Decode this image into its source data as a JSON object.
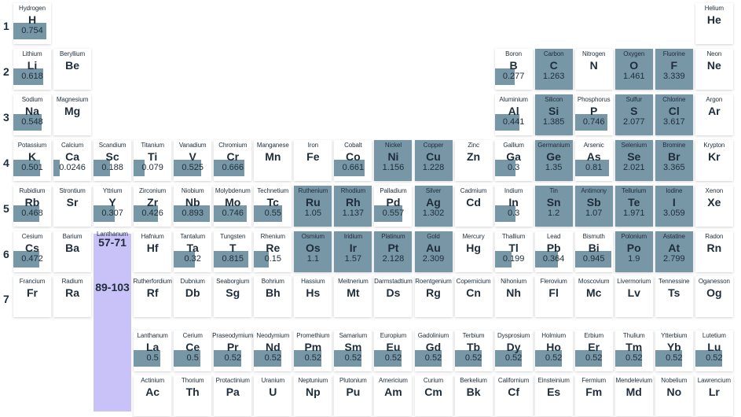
{
  "chart_data": {
    "type": "table",
    "colors": {
      "bar": "#7796a6",
      "series_block": "#c9c2f8",
      "text": "#1f2d3a"
    },
    "periods": [
      "1",
      "2",
      "3",
      "4",
      "5",
      "6",
      "7"
    ],
    "series_blocks": [
      {
        "label": "Lanthanum",
        "range": "57-71"
      },
      {
        "label": "",
        "range": "89-103"
      }
    ],
    "elements": [
      {
        "name": "Hydrogen",
        "symbol": "H",
        "row": 1,
        "col": 1,
        "value": "0.754",
        "v": 0.754
      },
      {
        "name": "Helium",
        "symbol": "He",
        "row": 1,
        "col": 18,
        "value": "",
        "v": 0
      },
      {
        "name": "Lithium",
        "symbol": "Li",
        "row": 2,
        "col": 1,
        "value": "0.618",
        "v": 0.618
      },
      {
        "name": "Beryllium",
        "symbol": "Be",
        "row": 2,
        "col": 2,
        "value": "",
        "v": 0
      },
      {
        "name": "Boron",
        "symbol": "B",
        "row": 2,
        "col": 13,
        "value": "0.277",
        "v": 0.277
      },
      {
        "name": "Carbon",
        "symbol": "C",
        "row": 2,
        "col": 14,
        "value": "1.263",
        "v": 1.263
      },
      {
        "name": "Nitrogen",
        "symbol": "N",
        "row": 2,
        "col": 15,
        "value": "",
        "v": 0
      },
      {
        "name": "Oxygen",
        "symbol": "O",
        "row": 2,
        "col": 16,
        "value": "1.461",
        "v": 1.461
      },
      {
        "name": "Fluorine",
        "symbol": "F",
        "row": 2,
        "col": 17,
        "value": "3.339",
        "v": 3.339
      },
      {
        "name": "Neon",
        "symbol": "Ne",
        "row": 2,
        "col": 18,
        "value": "",
        "v": 0
      },
      {
        "name": "Sodium",
        "symbol": "Na",
        "row": 3,
        "col": 1,
        "value": "0.548",
        "v": 0.548
      },
      {
        "name": "Magnesium",
        "symbol": "Mg",
        "row": 3,
        "col": 2,
        "value": "",
        "v": 0
      },
      {
        "name": "Aluminium",
        "symbol": "Al",
        "row": 3,
        "col": 13,
        "value": "0.441",
        "v": 0.441
      },
      {
        "name": "Silicon",
        "symbol": "Si",
        "row": 3,
        "col": 14,
        "value": "1.385",
        "v": 1.385
      },
      {
        "name": "Phosphorus",
        "symbol": "P",
        "row": 3,
        "col": 15,
        "value": "0.746",
        "v": 0.746
      },
      {
        "name": "Sulfur",
        "symbol": "S",
        "row": 3,
        "col": 16,
        "value": "2.077",
        "v": 2.077
      },
      {
        "name": "Chlorine",
        "symbol": "Cl",
        "row": 3,
        "col": 17,
        "value": "3.617",
        "v": 3.617
      },
      {
        "name": "Argon",
        "symbol": "Ar",
        "row": 3,
        "col": 18,
        "value": "",
        "v": 0
      },
      {
        "name": "Potassium",
        "symbol": "K",
        "row": 4,
        "col": 1,
        "value": "0.501",
        "v": 0.501
      },
      {
        "name": "Calcium",
        "symbol": "Ca",
        "row": 4,
        "col": 2,
        "value": "0.0246",
        "v": 0.0246
      },
      {
        "name": "Scandium",
        "symbol": "Sc",
        "row": 4,
        "col": 3,
        "value": "0.188",
        "v": 0.188
      },
      {
        "name": "Titanium",
        "symbol": "Ti",
        "row": 4,
        "col": 4,
        "value": "0.079",
        "v": 0.079
      },
      {
        "name": "Vanadium",
        "symbol": "V",
        "row": 4,
        "col": 5,
        "value": "0.525",
        "v": 0.525
      },
      {
        "name": "Chromium",
        "symbol": "Cr",
        "row": 4,
        "col": 6,
        "value": "0.666",
        "v": 0.666
      },
      {
        "name": "Manganese",
        "symbol": "Mn",
        "row": 4,
        "col": 7,
        "value": "",
        "v": 0
      },
      {
        "name": "Iron",
        "symbol": "Fe",
        "row": 4,
        "col": 8,
        "value": "",
        "v": 0
      },
      {
        "name": "Cobalt",
        "symbol": "Co",
        "row": 4,
        "col": 9,
        "value": "0.661",
        "v": 0.661
      },
      {
        "name": "Nickel",
        "symbol": "Ni",
        "row": 4,
        "col": 10,
        "value": "1.156",
        "v": 1.156
      },
      {
        "name": "Copper",
        "symbol": "Cu",
        "row": 4,
        "col": 11,
        "value": "1.228",
        "v": 1.228
      },
      {
        "name": "Zinc",
        "symbol": "Zn",
        "row": 4,
        "col": 12,
        "value": "",
        "v": 0
      },
      {
        "name": "Gallium",
        "symbol": "Ga",
        "row": 4,
        "col": 13,
        "value": "0.3",
        "v": 0.3
      },
      {
        "name": "Germanium",
        "symbol": "Ge",
        "row": 4,
        "col": 14,
        "value": "1.35",
        "v": 1.35
      },
      {
        "name": "Arsenic",
        "symbol": "As",
        "row": 4,
        "col": 15,
        "value": "0.81",
        "v": 0.81
      },
      {
        "name": "Selenium",
        "symbol": "Se",
        "row": 4,
        "col": 16,
        "value": "2.021",
        "v": 2.021
      },
      {
        "name": "Bromine",
        "symbol": "Br",
        "row": 4,
        "col": 17,
        "value": "3.365",
        "v": 3.365
      },
      {
        "name": "Krypton",
        "symbol": "Kr",
        "row": 4,
        "col": 18,
        "value": "",
        "v": 0
      },
      {
        "name": "Rubidium",
        "symbol": "Rb",
        "row": 5,
        "col": 1,
        "value": "0.468",
        "v": 0.468
      },
      {
        "name": "Strontium",
        "symbol": "Sr",
        "row": 5,
        "col": 2,
        "value": "",
        "v": 0
      },
      {
        "name": "Yttrium",
        "symbol": "Y",
        "row": 5,
        "col": 3,
        "value": "0.307",
        "v": 0.307
      },
      {
        "name": "Zirconium",
        "symbol": "Zr",
        "row": 5,
        "col": 4,
        "value": "0.426",
        "v": 0.426
      },
      {
        "name": "Niobium",
        "symbol": "Nb",
        "row": 5,
        "col": 5,
        "value": "0.893",
        "v": 0.893
      },
      {
        "name": "Molybdenum",
        "symbol": "Mo",
        "row": 5,
        "col": 6,
        "value": "0.746",
        "v": 0.746
      },
      {
        "name": "Technetium",
        "symbol": "Tc",
        "row": 5,
        "col": 7,
        "value": "0.55",
        "v": 0.55
      },
      {
        "name": "Ruthenium",
        "symbol": "Ru",
        "row": 5,
        "col": 8,
        "value": "1.05",
        "v": 1.05
      },
      {
        "name": "Rhodium",
        "symbol": "Rh",
        "row": 5,
        "col": 9,
        "value": "1.137",
        "v": 1.137
      },
      {
        "name": "Palladium",
        "symbol": "Pd",
        "row": 5,
        "col": 10,
        "value": "0.557",
        "v": 0.557
      },
      {
        "name": "Silver",
        "symbol": "Ag",
        "row": 5,
        "col": 11,
        "value": "1.302",
        "v": 1.302
      },
      {
        "name": "Cadmium",
        "symbol": "Cd",
        "row": 5,
        "col": 12,
        "value": "",
        "v": 0
      },
      {
        "name": "Indium",
        "symbol": "In",
        "row": 5,
        "col": 13,
        "value": "0.3",
        "v": 0.3
      },
      {
        "name": "Tin",
        "symbol": "Sn",
        "row": 5,
        "col": 14,
        "value": "1.2",
        "v": 1.2
      },
      {
        "name": "Antimony",
        "symbol": "Sb",
        "row": 5,
        "col": 15,
        "value": "1.07",
        "v": 1.07
      },
      {
        "name": "Tellurium",
        "symbol": "Te",
        "row": 5,
        "col": 16,
        "value": "1.971",
        "v": 1.971
      },
      {
        "name": "Iodine",
        "symbol": "I",
        "row": 5,
        "col": 17,
        "value": "3.059",
        "v": 3.059
      },
      {
        "name": "Xenon",
        "symbol": "Xe",
        "row": 5,
        "col": 18,
        "value": "",
        "v": 0
      },
      {
        "name": "Cesium",
        "symbol": "Cs",
        "row": 6,
        "col": 1,
        "value": "0.472",
        "v": 0.472
      },
      {
        "name": "Barium",
        "symbol": "Ba",
        "row": 6,
        "col": 2,
        "value": "",
        "v": 0
      },
      {
        "name": "Hafnium",
        "symbol": "Hf",
        "row": 6,
        "col": 4,
        "value": "",
        "v": 0
      },
      {
        "name": "Tantalum",
        "symbol": "Ta",
        "row": 6,
        "col": 5,
        "value": "0.32",
        "v": 0.32
      },
      {
        "name": "Tungsten",
        "symbol": "T",
        "row": 6,
        "col": 6,
        "value": "0.815",
        "v": 0.815
      },
      {
        "name": "Rhenium",
        "symbol": "Re",
        "row": 6,
        "col": 7,
        "value": "0.15",
        "v": 0.15
      },
      {
        "name": "Osmium",
        "symbol": "Os",
        "row": 6,
        "col": 8,
        "value": "1.1",
        "v": 1.1
      },
      {
        "name": "Iridium",
        "symbol": "Ir",
        "row": 6,
        "col": 9,
        "value": "1.57",
        "v": 1.57
      },
      {
        "name": "Platinum",
        "symbol": "Pt",
        "row": 6,
        "col": 10,
        "value": "2.128",
        "v": 2.128
      },
      {
        "name": "Gold",
        "symbol": "Au",
        "row": 6,
        "col": 11,
        "value": "2.309",
        "v": 2.309
      },
      {
        "name": "Mercury",
        "symbol": "Hg",
        "row": 6,
        "col": 12,
        "value": "",
        "v": 0
      },
      {
        "name": "Thallium",
        "symbol": "Tl",
        "row": 6,
        "col": 13,
        "value": "0.199",
        "v": 0.199
      },
      {
        "name": "Lead",
        "symbol": "Pb",
        "row": 6,
        "col": 14,
        "value": "0.364",
        "v": 0.364
      },
      {
        "name": "Bismuth",
        "symbol": "Bi",
        "row": 6,
        "col": 15,
        "value": "0.945",
        "v": 0.945
      },
      {
        "name": "Polonium",
        "symbol": "Po",
        "row": 6,
        "col": 16,
        "value": "1.9",
        "v": 1.9
      },
      {
        "name": "Astatine",
        "symbol": "At",
        "row": 6,
        "col": 17,
        "value": "2.799",
        "v": 2.799
      },
      {
        "name": "Radon",
        "symbol": "Rn",
        "row": 6,
        "col": 18,
        "value": "",
        "v": 0
      },
      {
        "name": "Francium",
        "symbol": "Fr",
        "row": 7,
        "col": 1,
        "value": "",
        "v": 0
      },
      {
        "name": "Radium",
        "symbol": "Ra",
        "row": 7,
        "col": 2,
        "value": "",
        "v": 0
      },
      {
        "name": "Rutherfordium",
        "symbol": "Rf",
        "row": 7,
        "col": 4,
        "value": "",
        "v": 0
      },
      {
        "name": "Dubnium",
        "symbol": "Db",
        "row": 7,
        "col": 5,
        "value": "",
        "v": 0
      },
      {
        "name": "Seaborgium",
        "symbol": "Sg",
        "row": 7,
        "col": 6,
        "value": "",
        "v": 0
      },
      {
        "name": "Bohrium",
        "symbol": "Bh",
        "row": 7,
        "col": 7,
        "value": "",
        "v": 0
      },
      {
        "name": "Hassium",
        "symbol": "Hs",
        "row": 7,
        "col": 8,
        "value": "",
        "v": 0
      },
      {
        "name": "Meitnerium",
        "symbol": "Mt",
        "row": 7,
        "col": 9,
        "value": "",
        "v": 0
      },
      {
        "name": "Darmstadtium",
        "symbol": "Ds",
        "row": 7,
        "col": 10,
        "value": "",
        "v": 0
      },
      {
        "name": "Roentgenium",
        "symbol": "Rg",
        "row": 7,
        "col": 11,
        "value": "",
        "v": 0
      },
      {
        "name": "Copernicium",
        "symbol": "Cn",
        "row": 7,
        "col": 12,
        "value": "",
        "v": 0
      },
      {
        "name": "Nihonium",
        "symbol": "Nh",
        "row": 7,
        "col": 13,
        "value": "",
        "v": 0
      },
      {
        "name": "Flerovium",
        "symbol": "Fl",
        "row": 7,
        "col": 14,
        "value": "",
        "v": 0
      },
      {
        "name": "Moscovium",
        "symbol": "Mc",
        "row": 7,
        "col": 15,
        "value": "",
        "v": 0
      },
      {
        "name": "Livermorium",
        "symbol": "Lv",
        "row": 7,
        "col": 16,
        "value": "",
        "v": 0
      },
      {
        "name": "Tennessine",
        "symbol": "Ts",
        "row": 7,
        "col": 17,
        "value": "",
        "v": 0
      },
      {
        "name": "Oganesson",
        "symbol": "Og",
        "row": 7,
        "col": 18,
        "value": "",
        "v": 0
      },
      {
        "name": "Lanthanum",
        "symbol": "La",
        "row": 9,
        "col": 4,
        "value": "0.5",
        "v": 0.5
      },
      {
        "name": "Cerium",
        "symbol": "Ce",
        "row": 9,
        "col": 5,
        "value": "0.5",
        "v": 0.5
      },
      {
        "name": "Praseodymium",
        "symbol": "Pr",
        "row": 9,
        "col": 6,
        "value": "0.52",
        "v": 0.52
      },
      {
        "name": "Neodymium",
        "symbol": "Nd",
        "row": 9,
        "col": 7,
        "value": "0.52",
        "v": 0.52
      },
      {
        "name": "Promethium",
        "symbol": "Pm",
        "row": 9,
        "col": 8,
        "value": "0.52",
        "v": 0.52
      },
      {
        "name": "Samarium",
        "symbol": "Sm",
        "row": 9,
        "col": 9,
        "value": "0.52",
        "v": 0.52
      },
      {
        "name": "Europium",
        "symbol": "Eu",
        "row": 9,
        "col": 10,
        "value": "0.52",
        "v": 0.52
      },
      {
        "name": "Gadolinium",
        "symbol": "Gd",
        "row": 9,
        "col": 11,
        "value": "0.52",
        "v": 0.52
      },
      {
        "name": "Terbium",
        "symbol": "Tb",
        "row": 9,
        "col": 12,
        "value": "0.52",
        "v": 0.52
      },
      {
        "name": "Dysprosium",
        "symbol": "Dy",
        "row": 9,
        "col": 13,
        "value": "0.52",
        "v": 0.52
      },
      {
        "name": "Holmium",
        "symbol": "Ho",
        "row": 9,
        "col": 14,
        "value": "0.52",
        "v": 0.52
      },
      {
        "name": "Erbium",
        "symbol": "Er",
        "row": 9,
        "col": 15,
        "value": "0.52",
        "v": 0.52
      },
      {
        "name": "Thulium",
        "symbol": "Tm",
        "row": 9,
        "col": 16,
        "value": "0.52",
        "v": 0.52
      },
      {
        "name": "Ytterbium",
        "symbol": "Yb",
        "row": 9,
        "col": 17,
        "value": "0.52",
        "v": 0.52
      },
      {
        "name": "Lutetium",
        "symbol": "Lu",
        "row": 9,
        "col": 18,
        "value": "0.52",
        "v": 0.52
      },
      {
        "name": "Actinium",
        "symbol": "Ac",
        "row": 10,
        "col": 4,
        "value": "",
        "v": 0
      },
      {
        "name": "Thorium",
        "symbol": "Th",
        "row": 10,
        "col": 5,
        "value": "",
        "v": 0
      },
      {
        "name": "Protactinium",
        "symbol": "Pa",
        "row": 10,
        "col": 6,
        "value": "",
        "v": 0
      },
      {
        "name": "Uranium",
        "symbol": "U",
        "row": 10,
        "col": 7,
        "value": "",
        "v": 0
      },
      {
        "name": "Neptunium",
        "symbol": "Np",
        "row": 10,
        "col": 8,
        "value": "",
        "v": 0
      },
      {
        "name": "Plutonium",
        "symbol": "Pu",
        "row": 10,
        "col": 9,
        "value": "",
        "v": 0
      },
      {
        "name": "Americium",
        "symbol": "Am",
        "row": 10,
        "col": 10,
        "value": "",
        "v": 0
      },
      {
        "name": "Curium",
        "symbol": "Cm",
        "row": 10,
        "col": 11,
        "value": "",
        "v": 0
      },
      {
        "name": "Berkelium",
        "symbol": "Bk",
        "row": 10,
        "col": 12,
        "value": "",
        "v": 0
      },
      {
        "name": "Californium",
        "symbol": "Cf",
        "row": 10,
        "col": 13,
        "value": "",
        "v": 0
      },
      {
        "name": "Einsteinium",
        "symbol": "Es",
        "row": 10,
        "col": 14,
        "value": "",
        "v": 0
      },
      {
        "name": "Fermium",
        "symbol": "Fm",
        "row": 10,
        "col": 15,
        "value": "",
        "v": 0
      },
      {
        "name": "Mendelevium",
        "symbol": "Md",
        "row": 10,
        "col": 16,
        "value": "",
        "v": 0
      },
      {
        "name": "Nobelium",
        "symbol": "No",
        "row": 10,
        "col": 17,
        "value": "",
        "v": 0
      },
      {
        "name": "Lawrencium",
        "symbol": "Lr",
        "row": 10,
        "col": 18,
        "value": "",
        "v": 0
      }
    ]
  }
}
